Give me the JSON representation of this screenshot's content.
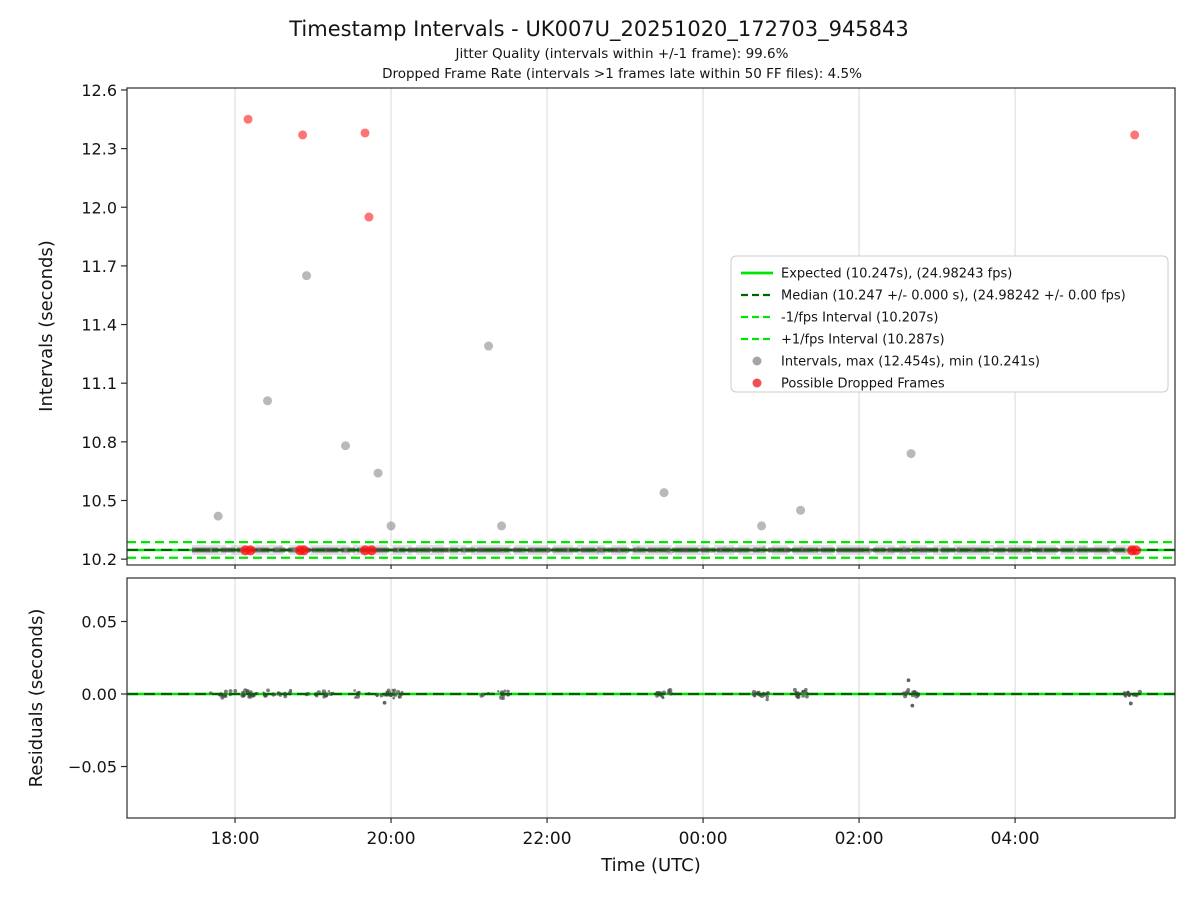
{
  "figure": {
    "title": "Timestamp Intervals - UK007U_20251020_172703_945843",
    "subtitle1": "Jitter Quality (intervals within +/-1 frame): 99.6%",
    "subtitle2": "Dropped Frame Rate (intervals >1 frames late within 50 FF files): 4.5%"
  },
  "chart_data": [
    {
      "type": "scatter",
      "ylabel": "Intervals (seconds)",
      "ylim": [
        10.17,
        12.61
      ],
      "yticks": [
        {
          "v": 10.2,
          "label": "10.2"
        },
        {
          "v": 10.5,
          "label": "10.5"
        },
        {
          "v": 10.8,
          "label": "10.8"
        },
        {
          "v": 11.1,
          "label": "11.1"
        },
        {
          "v": 11.4,
          "label": "11.4"
        },
        {
          "v": 11.7,
          "label": "11.7"
        },
        {
          "v": 12.0,
          "label": "12.0"
        },
        {
          "v": 12.3,
          "label": "12.3"
        },
        {
          "v": 12.6,
          "label": "12.6"
        }
      ],
      "lines": [
        {
          "name": "expected",
          "value": 10.247,
          "style": "solid",
          "color": "#00e600"
        },
        {
          "name": "minus-1fps",
          "value": 10.207,
          "style": "dashed",
          "color": "#00e600"
        },
        {
          "name": "plus-1fps",
          "value": 10.287,
          "style": "dashed",
          "color": "#00e600"
        },
        {
          "name": "median",
          "value": 10.247,
          "style": "dashed",
          "color": "#006400"
        }
      ],
      "baseline_band": {
        "start": "17:27",
        "end": "05:32",
        "value": 10.247
      },
      "points": [
        {
          "time": "17:47",
          "value": 10.42
        },
        {
          "time": "18:25",
          "value": 11.01
        },
        {
          "time": "18:55",
          "value": 11.65
        },
        {
          "time": "19:25",
          "value": 10.78
        },
        {
          "time": "19:50",
          "value": 10.64
        },
        {
          "time": "20:00",
          "value": 10.37
        },
        {
          "time": "21:15",
          "value": 11.29
        },
        {
          "time": "21:25",
          "value": 10.37
        },
        {
          "time": "23:30",
          "value": 10.54
        },
        {
          "time": "00:45",
          "value": 10.37
        },
        {
          "time": "01:15",
          "value": 10.45
        },
        {
          "time": "02:40",
          "value": 10.74
        }
      ],
      "dropped_points": [
        {
          "time": "18:10",
          "value": 12.45
        },
        {
          "time": "18:52",
          "value": 12.37
        },
        {
          "time": "19:40",
          "value": 12.38
        },
        {
          "time": "19:43",
          "value": 11.95
        },
        {
          "time": "05:32",
          "value": 12.37
        }
      ],
      "dropped_points_baseline": [
        {
          "time": "18:08",
          "value": 10.245
        },
        {
          "time": "18:12",
          "value": 10.245
        },
        {
          "time": "18:50",
          "value": 10.245
        },
        {
          "time": "18:53",
          "value": 10.245
        },
        {
          "time": "19:40",
          "value": 10.245
        },
        {
          "time": "19:45",
          "value": 10.245
        },
        {
          "time": "05:30",
          "value": 10.245
        },
        {
          "time": "05:33",
          "value": 10.245
        }
      ],
      "stats": {
        "max_interval_s": 12.454,
        "min_interval_s": 10.241,
        "expected_s": 10.247,
        "expected_fps": 24.98243
      },
      "legend": [
        {
          "marker": "line-solid",
          "color": "#00e600",
          "label": "Expected (10.247s), (24.98243 fps)"
        },
        {
          "marker": "line-dashed",
          "color": "#006400",
          "label": "Median (10.247 +/- 0.000 s), (24.98242 +/- 0.00 fps)"
        },
        {
          "marker": "line-dashed",
          "color": "#00e600",
          "label": "-1/fps Interval (10.207s)"
        },
        {
          "marker": "line-dashed",
          "color": "#00e600",
          "label": "+1/fps Interval (10.287s)"
        },
        {
          "marker": "dot",
          "color": "#a5a5a5",
          "label": "Intervals, max (12.454s), min (10.241s)"
        },
        {
          "marker": "dot",
          "color": "#f05050",
          "label": "Possible Dropped Frames"
        }
      ]
    },
    {
      "type": "scatter",
      "ylabel": "Residuals (seconds)",
      "xlabel": "Time (UTC)",
      "ylim": [
        -0.0855,
        0.08
      ],
      "yticks": [
        {
          "v": -0.05,
          "label": "−0.05"
        },
        {
          "v": 0.0,
          "label": "0.00"
        },
        {
          "v": 0.05,
          "label": "0.05"
        }
      ],
      "xticks": [
        {
          "time": "18:00",
          "label": "18:00"
        },
        {
          "time": "20:00",
          "label": "20:00"
        },
        {
          "time": "22:00",
          "label": "22:00"
        },
        {
          "time": "00:00",
          "label": "00:00"
        },
        {
          "time": "02:00",
          "label": "02:00"
        },
        {
          "time": "04:00",
          "label": "04:00"
        }
      ],
      "lines": [
        {
          "name": "expected",
          "value": 0.0,
          "style": "solid",
          "color": "#00e600"
        },
        {
          "name": "median",
          "value": 0.0,
          "style": "dashed",
          "color": "#006400"
        }
      ],
      "clusters": [
        {
          "time": "17:55",
          "width_min": 28
        },
        {
          "time": "18:12",
          "width_min": 14
        },
        {
          "time": "18:32",
          "width_min": 22
        },
        {
          "time": "19:05",
          "width_min": 22
        },
        {
          "time": "19:48",
          "width_min": 32
        },
        {
          "time": "20:02",
          "width_min": 14
        },
        {
          "time": "21:20",
          "width_min": 22
        },
        {
          "time": "23:30",
          "width_min": 12
        },
        {
          "time": "00:45",
          "width_min": 12
        },
        {
          "time": "01:15",
          "width_min": 12
        },
        {
          "time": "02:40",
          "width_min": 12
        },
        {
          "time": "05:30",
          "width_min": 14
        }
      ],
      "outlier_points": [
        {
          "time": "02:38",
          "value": 0.0095
        },
        {
          "time": "02:41",
          "value": -0.008
        },
        {
          "time": "19:55",
          "value": -0.006
        },
        {
          "time": "05:29",
          "value": -0.0065
        }
      ]
    }
  ]
}
